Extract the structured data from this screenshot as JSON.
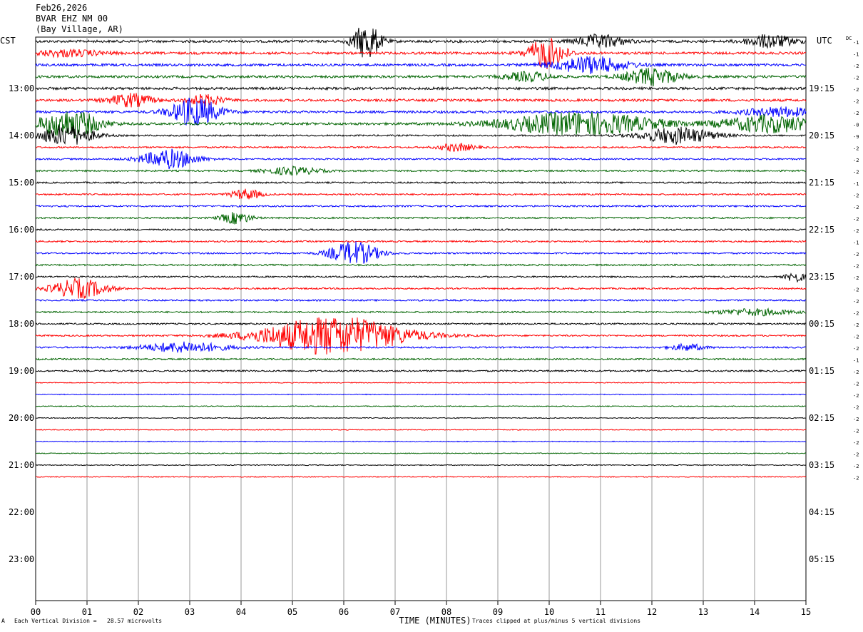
{
  "header": {
    "date": "Feb26,2026",
    "station": "BVAR EHZ NM 00",
    "location": "(Bay Village, AR)"
  },
  "left_tz": "CST",
  "right_tz": "UTC",
  "dc_label": "DC",
  "footer": {
    "scale_note": "Each Vertical Division =   28.57 microvolts",
    "clip_note": "Traces clipped at plus/minus 5 vertical divisions",
    "corner_mark": "A"
  },
  "colors": [
    "#000000",
    "#ff0000",
    "#0000ff",
    "#006400"
  ],
  "chart_data": {
    "type": "line",
    "xlabel": "TIME (MINUTES)",
    "x_ticks": [
      "00",
      "01",
      "02",
      "03",
      "04",
      "05",
      "06",
      "07",
      "08",
      "09",
      "10",
      "11",
      "12",
      "13",
      "14",
      "15"
    ],
    "xlim": [
      0,
      15
    ],
    "grid": true,
    "left_hour_labels": [
      "13:00",
      "14:00",
      "15:00",
      "16:00",
      "17:00",
      "18:00",
      "19:00",
      "20:00",
      "21:00",
      "22:00",
      "23:00"
    ],
    "right_hour_labels": [
      "19:15",
      "20:15",
      "21:15",
      "22:15",
      "23:15",
      "00:15",
      "01:15",
      "02:15",
      "03:15",
      "04:15",
      "05:15"
    ],
    "trace_count": 38,
    "dc_offsets": [
      "-1",
      "-1",
      "-2",
      "-2",
      "-2",
      "-2",
      "-2",
      "-0",
      "-9",
      "-2",
      "-2",
      "-2",
      "-1",
      "-2",
      "-2",
      "-2",
      "-2",
      "-1",
      "-2",
      "-2",
      "-2",
      "-2",
      "-2",
      "-2",
      "-2",
      "-2",
      "-2",
      "-1",
      "-2",
      "-2",
      "-2",
      "-2",
      "-2",
      "-2",
      "-2",
      "-2",
      "-2",
      "-2"
    ],
    "events": [
      {
        "trace": 0,
        "minute": 6.45,
        "width": 0.45,
        "amplitude": 2.8
      },
      {
        "trace": 0,
        "minute": 11.0,
        "width": 0.8,
        "amplitude": 1.0
      },
      {
        "trace": 0,
        "minute": 14.3,
        "width": 0.8,
        "amplitude": 1.0
      },
      {
        "trace": 1,
        "minute": 9.95,
        "width": 0.6,
        "amplitude": 2.4
      },
      {
        "trace": 1,
        "minute": 0.6,
        "width": 1.2,
        "amplitude": 0.5
      },
      {
        "trace": 2,
        "minute": 10.8,
        "width": 1.2,
        "amplitude": 1.3
      },
      {
        "trace": 3,
        "minute": 12.0,
        "width": 0.9,
        "amplitude": 1.3
      },
      {
        "trace": 3,
        "minute": 9.6,
        "width": 0.8,
        "amplitude": 0.7
      },
      {
        "trace": 5,
        "minute": 1.85,
        "width": 0.7,
        "amplitude": 1.0
      },
      {
        "trace": 5,
        "minute": 3.3,
        "width": 0.6,
        "amplitude": 0.8
      },
      {
        "trace": 6,
        "minute": 3.1,
        "width": 0.8,
        "amplitude": 2.2
      },
      {
        "trace": 6,
        "minute": 14.5,
        "width": 1.2,
        "amplitude": 0.7
      },
      {
        "trace": 7,
        "minute": 0.65,
        "width": 1.0,
        "amplitude": 2.2
      },
      {
        "trace": 7,
        "minute": 10.6,
        "width": 2.5,
        "amplitude": 1.8
      },
      {
        "trace": 7,
        "minute": 14.3,
        "width": 1.6,
        "amplitude": 1.3
      },
      {
        "trace": 8,
        "minute": 0.6,
        "width": 0.9,
        "amplitude": 1.6
      },
      {
        "trace": 8,
        "minute": 12.5,
        "width": 1.2,
        "amplitude": 1.3
      },
      {
        "trace": 9,
        "minute": 8.2,
        "width": 0.6,
        "amplitude": 0.6
      },
      {
        "trace": 10,
        "minute": 2.6,
        "width": 0.9,
        "amplitude": 1.5
      },
      {
        "trace": 11,
        "minute": 5.0,
        "width": 0.9,
        "amplitude": 0.6
      },
      {
        "trace": 13,
        "minute": 4.1,
        "width": 0.5,
        "amplitude": 0.8
      },
      {
        "trace": 15,
        "minute": 3.9,
        "width": 0.5,
        "amplitude": 0.9
      },
      {
        "trace": 18,
        "minute": 6.2,
        "width": 0.8,
        "amplitude": 1.8
      },
      {
        "trace": 20,
        "minute": 14.8,
        "width": 0.3,
        "amplitude": 0.8
      },
      {
        "trace": 21,
        "minute": 0.85,
        "width": 0.9,
        "amplitude": 1.5
      },
      {
        "trace": 23,
        "minute": 14.0,
        "width": 1.2,
        "amplitude": 0.5
      },
      {
        "trace": 25,
        "minute": 5.8,
        "width": 2.4,
        "amplitude": 3.0
      },
      {
        "trace": 26,
        "minute": 2.9,
        "width": 1.4,
        "amplitude": 0.8
      },
      {
        "trace": 26,
        "minute": 12.7,
        "width": 0.6,
        "amplitude": 0.5
      }
    ]
  }
}
